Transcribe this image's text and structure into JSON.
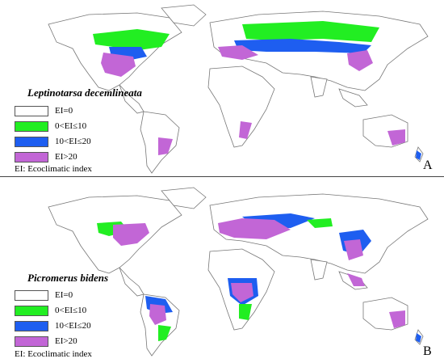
{
  "colors": {
    "land": "#ffffff",
    "border": "#777777",
    "cls0": "#ffffff",
    "cls1": "#22ee22",
    "cls2": "#1e5ef0",
    "cls3": "#c266d6"
  },
  "legend_labels": [
    "EI=0",
    "0<EI≤10",
    "10<EI≤20",
    "EI>20"
  ],
  "panels": [
    {
      "species": "Leptinotarsa decemlineata",
      "note": "EI: Ecoclimatic index",
      "letter": "A"
    },
    {
      "species": "Picromerus bidens",
      "note": "EI: Ecoclimatic index",
      "letter": "B"
    }
  ]
}
